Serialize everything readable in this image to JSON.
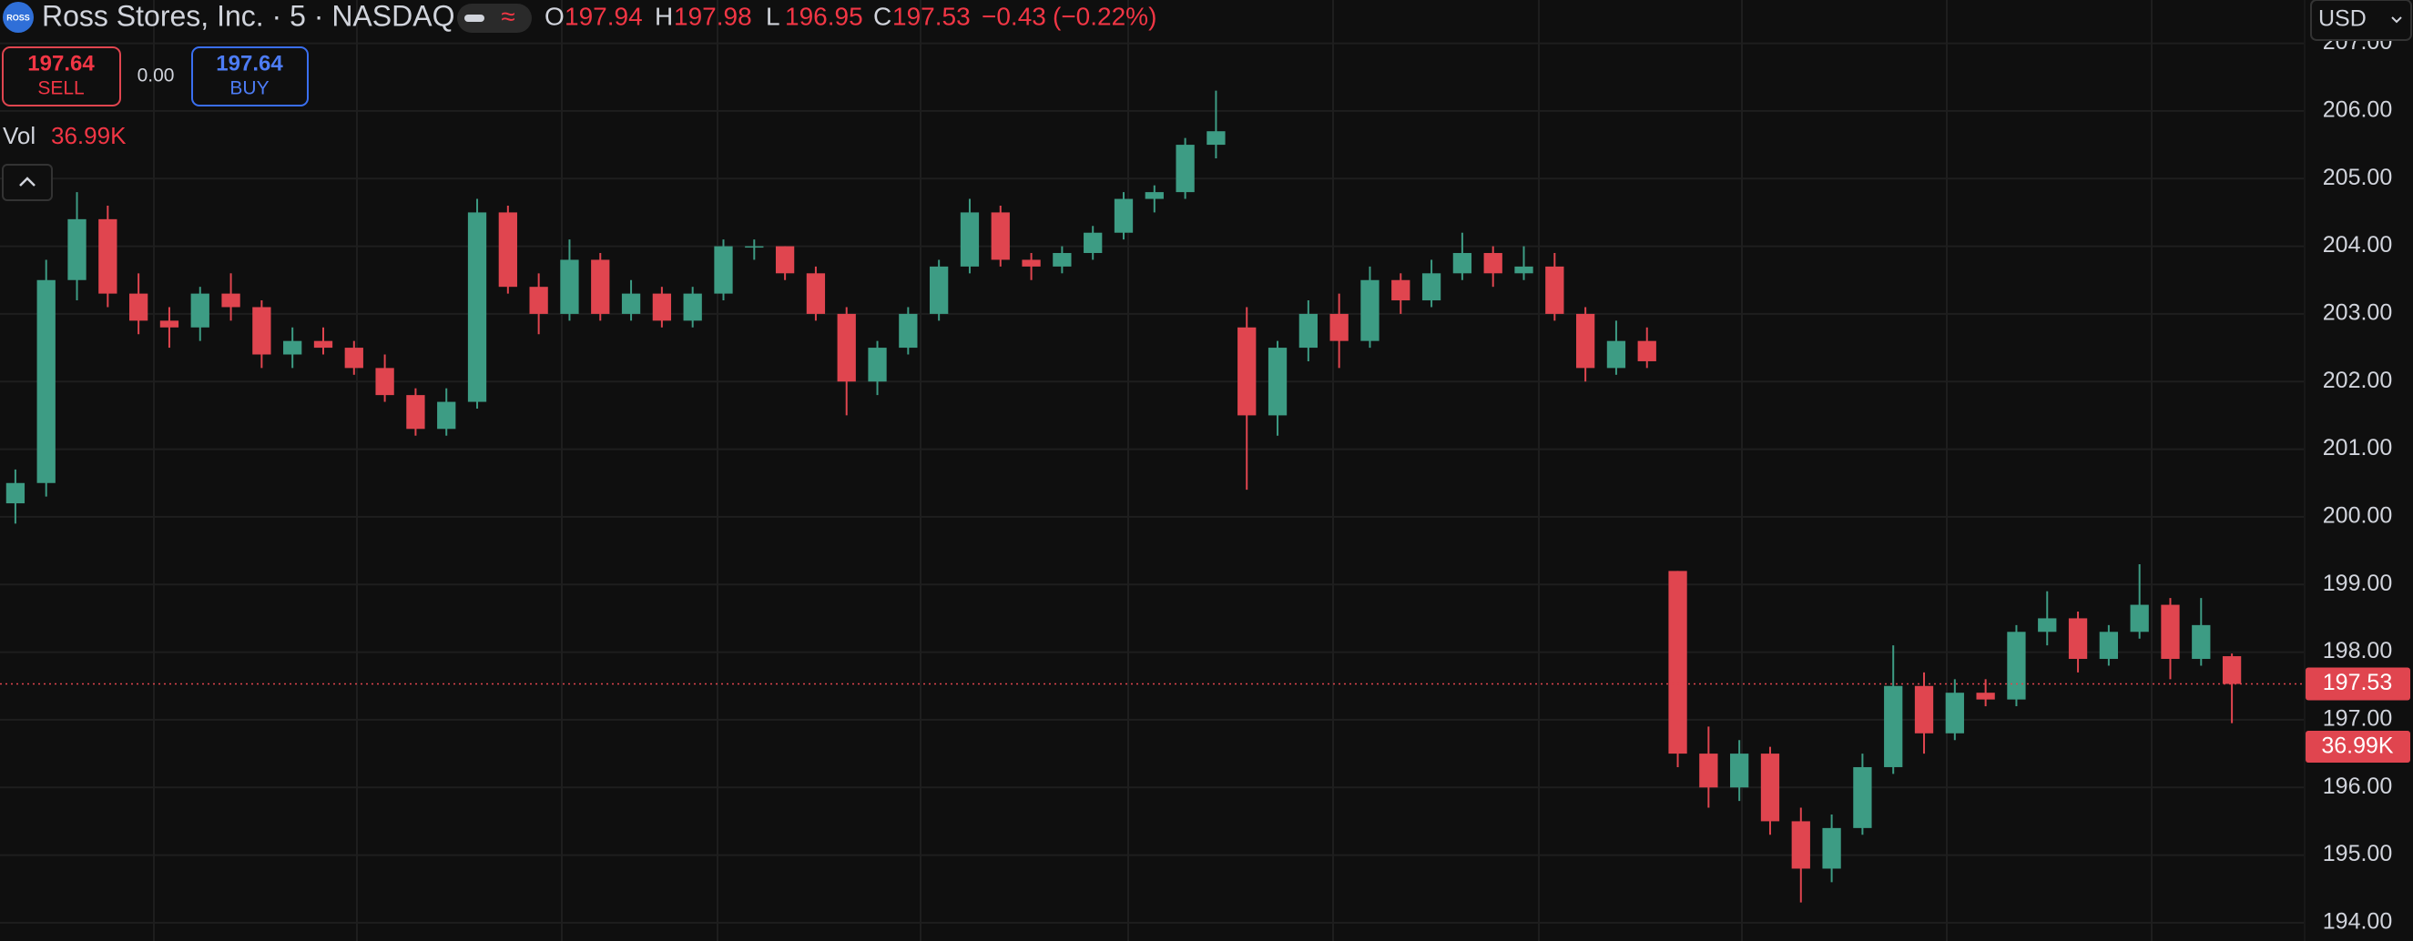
{
  "ui": {
    "logo": "ROSS",
    "symbol": "Ross Stores, Inc. · 5 · NASDAQ",
    "open_label": "O",
    "high_label": "H",
    "low_label": "L",
    "close_label": "C",
    "sell_price": "197.64",
    "sell_label": "SELL",
    "spread": "0.00",
    "buy_price": "197.64",
    "buy_label": "BUY",
    "vol_label": "Vol",
    "vol_value": "36.99K",
    "currency": "USD"
  },
  "chart_data": {
    "type": "candlestick",
    "change": {
      "value": -0.43,
      "label": "−0.43"
    },
    "change_pct": {
      "value": -0.22,
      "label": "(−0.22%)"
    },
    "up_color": "#3d9c84",
    "down_color": "#e0454f",
    "grid": true,
    "ylim": [
      193.73,
      207.64
    ],
    "yticks": [
      {
        "value": 194,
        "label": "194.00"
      },
      {
        "value": 195,
        "label": "195.00"
      },
      {
        "value": 196,
        "label": "196.00"
      },
      {
        "value": 197,
        "label": "197.00"
      },
      {
        "value": 198,
        "label": "198.00"
      },
      {
        "value": 199,
        "label": "199.00"
      },
      {
        "value": 200,
        "label": "200.00"
      },
      {
        "value": 201,
        "label": "201.00"
      },
      {
        "value": 202,
        "label": "202.00"
      },
      {
        "value": 203,
        "label": "203.00"
      },
      {
        "value": 204,
        "label": "204.00"
      },
      {
        "value": 205,
        "label": "205.00"
      },
      {
        "value": 206,
        "label": "206.00"
      },
      {
        "value": 207,
        "label": "207.00"
      }
    ],
    "open": [
      200.2,
      200.5,
      203.5,
      204.4,
      203.3,
      202.9,
      202.8,
      203.3,
      203.1,
      202.4,
      202.6,
      202.5,
      202.2,
      201.8,
      201.3,
      201.7,
      204.5,
      203.4,
      203.0,
      203.8,
      203.0,
      203.3,
      202.9,
      203.3,
      204.0,
      204.0,
      203.6,
      203.0,
      202.0,
      202.5,
      203.0,
      203.7,
      204.5,
      203.8,
      203.7,
      203.9,
      204.2,
      204.7,
      204.8,
      205.5,
      202.8,
      201.5,
      202.5,
      203.0,
      202.6,
      203.5,
      203.2,
      203.6,
      203.9,
      203.6,
      203.7,
      203.0,
      202.2,
      202.6,
      199.2,
      196.5,
      196.0,
      196.5,
      195.5,
      194.8,
      195.4,
      196.3,
      197.5,
      196.8,
      197.4,
      197.3,
      198.3,
      198.5,
      197.9,
      198.3,
      198.7,
      197.9,
      197.94
    ],
    "high": [
      200.7,
      203.8,
      204.8,
      204.6,
      203.6,
      203.1,
      203.4,
      203.6,
      203.2,
      202.8,
      202.8,
      202.6,
      202.4,
      201.9,
      201.9,
      204.7,
      204.6,
      203.6,
      204.1,
      203.9,
      203.5,
      203.4,
      203.4,
      204.1,
      204.1,
      204.0,
      203.7,
      203.1,
      202.6,
      203.1,
      203.8,
      204.7,
      204.6,
      203.9,
      204.0,
      204.3,
      204.8,
      204.9,
      205.6,
      206.3,
      203.1,
      202.6,
      203.2,
      203.3,
      203.7,
      203.6,
      203.8,
      204.2,
      204.0,
      204.0,
      203.9,
      203.1,
      202.9,
      202.8,
      199.2,
      196.9,
      196.7,
      196.6,
      195.7,
      195.6,
      196.5,
      198.1,
      197.7,
      197.6,
      197.6,
      198.4,
      198.9,
      198.6,
      198.4,
      199.3,
      198.8,
      198.8,
      197.98
    ],
    "low": [
      199.9,
      200.3,
      203.2,
      203.1,
      202.7,
      202.5,
      202.6,
      202.9,
      202.2,
      202.2,
      202.4,
      202.1,
      201.7,
      201.2,
      201.2,
      201.6,
      203.3,
      202.7,
      202.9,
      202.9,
      202.9,
      202.8,
      202.8,
      203.2,
      203.8,
      203.5,
      202.9,
      201.5,
      201.8,
      202.4,
      202.9,
      203.6,
      203.7,
      203.5,
      203.6,
      203.8,
      204.1,
      204.5,
      204.7,
      205.3,
      200.4,
      201.2,
      202.3,
      202.2,
      202.5,
      203.0,
      203.1,
      203.5,
      203.4,
      203.5,
      202.9,
      202.0,
      202.1,
      202.2,
      196.3,
      195.7,
      195.8,
      195.3,
      194.3,
      194.6,
      195.3,
      196.2,
      196.5,
      196.7,
      197.2,
      197.2,
      198.1,
      197.7,
      197.8,
      198.2,
      197.6,
      197.8,
      196.95
    ],
    "close": [
      200.5,
      203.5,
      204.4,
      203.3,
      202.9,
      202.8,
      203.3,
      203.1,
      202.4,
      202.6,
      202.5,
      202.2,
      201.8,
      201.3,
      201.7,
      204.5,
      203.4,
      203.0,
      203.8,
      203.0,
      203.3,
      202.9,
      203.3,
      204.0,
      204.0,
      203.6,
      203.0,
      202.0,
      202.5,
      203.0,
      203.7,
      204.5,
      203.8,
      203.7,
      203.9,
      204.2,
      204.7,
      204.8,
      205.5,
      205.7,
      201.5,
      202.5,
      203.0,
      202.6,
      203.5,
      203.2,
      203.6,
      203.9,
      203.6,
      203.7,
      203.0,
      202.2,
      202.6,
      202.3,
      196.5,
      196.0,
      196.5,
      195.5,
      194.8,
      195.4,
      196.3,
      197.5,
      196.8,
      197.4,
      197.3,
      198.3,
      198.5,
      197.9,
      198.3,
      198.7,
      197.9,
      198.4,
      197.53
    ]
  }
}
